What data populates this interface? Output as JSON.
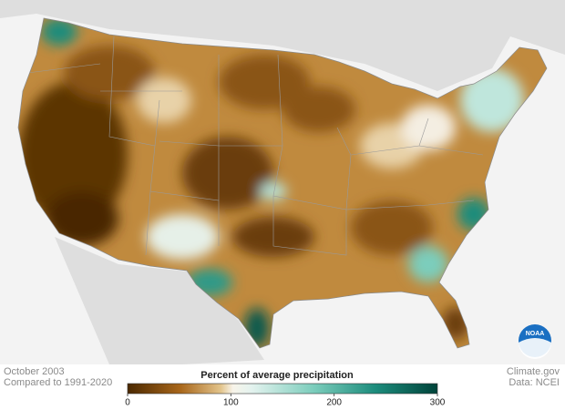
{
  "caption": {
    "date": "October 2003",
    "baseline": "Compared to 1991-2020"
  },
  "legend": {
    "title": "Percent of average precipitation",
    "range": [
      0,
      300
    ],
    "ticks": [
      0,
      100,
      200,
      300
    ]
  },
  "credits": {
    "source": "Climate.gov",
    "data": "Data: NCEI"
  },
  "logo": "NOAA"
}
